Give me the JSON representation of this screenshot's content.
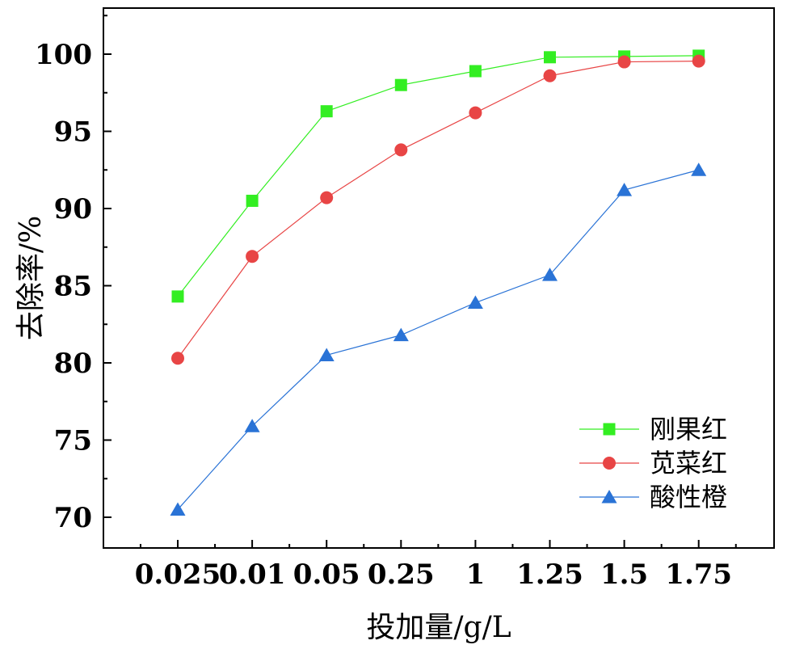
{
  "chart_data": {
    "type": "line",
    "title": "",
    "xlabel": "投加量/g/L",
    "ylabel": "去除率/%",
    "categories": [
      "0.025",
      "0.01",
      "0.05",
      "0.25",
      "1",
      "1.25",
      "1.5",
      "1.75"
    ],
    "ylim": [
      67.5,
      102.5
    ],
    "yticks": [
      70,
      75,
      80,
      85,
      90,
      95,
      100
    ],
    "ytick_labels": [
      "70",
      "75",
      "80",
      "85",
      "90",
      "95",
      "100"
    ],
    "grid": false,
    "legend_position": "bottom-right",
    "series": [
      {
        "name": "刚果红",
        "color": "#33ee22",
        "marker": "square",
        "values": [
          84.3,
          90.5,
          96.3,
          98.0,
          98.9,
          99.8,
          99.85,
          99.9
        ]
      },
      {
        "name": "苋菜红",
        "color": "#e84545",
        "marker": "circle",
        "values": [
          80.3,
          86.9,
          90.7,
          93.8,
          96.2,
          98.6,
          99.5,
          99.55
        ]
      },
      {
        "name": "酸性橙",
        "color": "#2a73d6",
        "marker": "triangle",
        "values": [
          70.5,
          75.9,
          80.5,
          81.8,
          83.9,
          85.7,
          91.2,
          92.5
        ]
      }
    ]
  }
}
